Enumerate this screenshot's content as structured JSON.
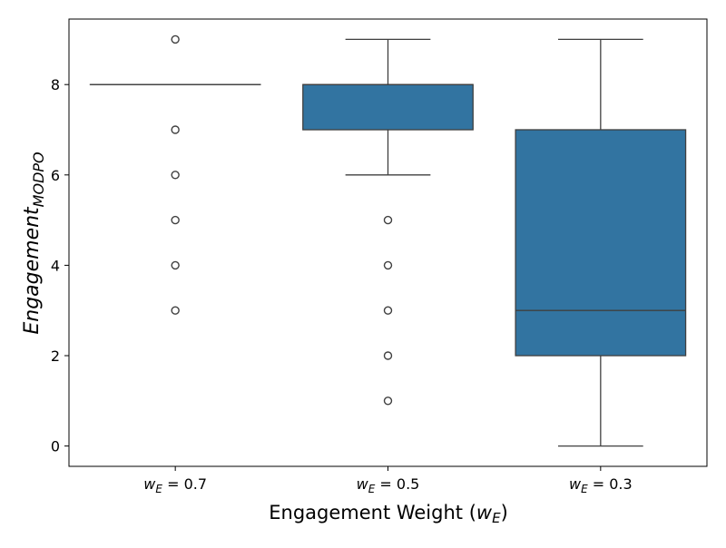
{
  "chart_data": {
    "type": "boxplot",
    "title": "",
    "xlabel": {
      "main": "Engagement Weight (",
      "var": "w",
      "sub": "E",
      "close": ")"
    },
    "ylabel": {
      "main": "Engagement",
      "sub": "MODPO"
    },
    "ylim": [
      -0.45,
      9.45
    ],
    "yticks": [
      0,
      2,
      4,
      6,
      8
    ],
    "box_color": "#3274a1",
    "edge_color": "#3f3f3f",
    "categories": [
      {
        "var": "w",
        "sub": "E",
        "eq": " = 0.7"
      },
      {
        "var": "w",
        "sub": "E",
        "eq": " = 0.5"
      },
      {
        "var": "w",
        "sub": "E",
        "eq": " = 0.3"
      }
    ],
    "boxes": [
      {
        "q1": 8,
        "median": 8,
        "q3": 8,
        "whisker_low": 8,
        "whisker_high": 8,
        "outliers": [
          9,
          7,
          6,
          5,
          4,
          3
        ]
      },
      {
        "q1": 7,
        "median": 8,
        "q3": 8,
        "whisker_low": 6,
        "whisker_high": 9,
        "outliers": [
          5,
          4,
          3,
          2,
          1
        ]
      },
      {
        "q1": 2,
        "median": 3,
        "q3": 7,
        "whisker_low": 0,
        "whisker_high": 9,
        "outliers": []
      }
    ]
  }
}
